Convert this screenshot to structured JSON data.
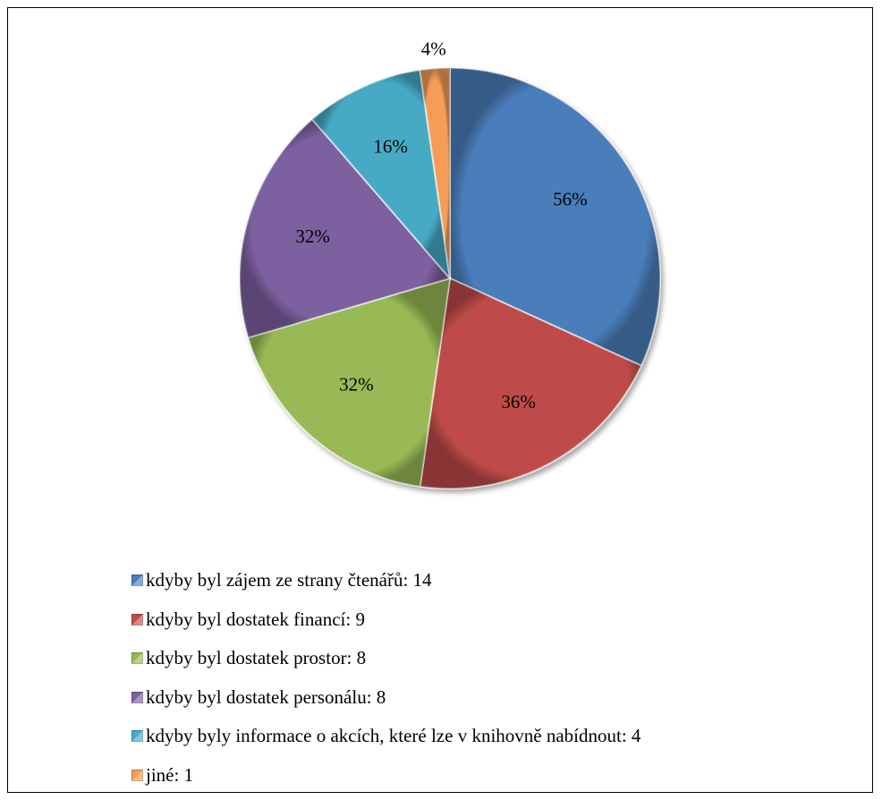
{
  "chart_data": {
    "type": "pie",
    "title": "",
    "slices": [
      {
        "label": "kdyby byl zájem ze strany čtenářů: 14",
        "value": 14,
        "pct_label": "56%",
        "color": "#4a7ebb"
      },
      {
        "label": "kdyby byl dostatek financí: 9",
        "value": 9,
        "pct_label": "36%",
        "color": "#be4b48"
      },
      {
        "label": "kdyby byl dostatek prostor: 8",
        "value": 8,
        "pct_label": "32%",
        "color": "#98b954"
      },
      {
        "label": "kdyby byl dostatek personálu: 8",
        "value": 8,
        "pct_label": "32%",
        "color": "#7d60a0"
      },
      {
        "label": "kdyby byly informace o akcích, které lze v knihovně nabídnout: 4",
        "value": 4,
        "pct_label": "16%",
        "color": "#46aac5"
      },
      {
        "label": "jiné: 1",
        "value": 1,
        "pct_label": "4%",
        "color": "#f59d56"
      }
    ],
    "legend_position": "bottom-left"
  }
}
